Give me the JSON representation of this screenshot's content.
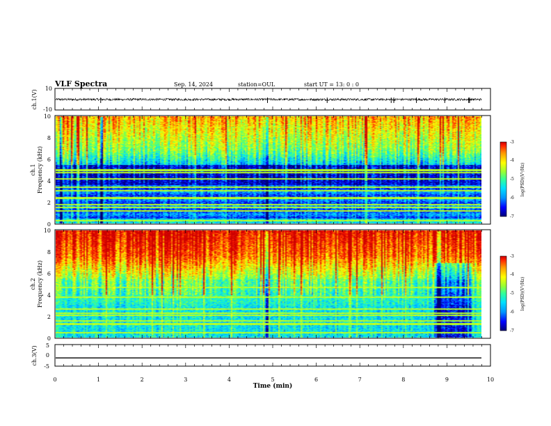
{
  "header": {
    "title": "VLF Spectra",
    "date": "Sep. 14, 2024",
    "station": "station=OUL",
    "start": "start  UT =  13: 0  : 0"
  },
  "colors": {
    "frame": "#000000",
    "colormap": [
      "#00007a",
      "#0000ff",
      "#0096ff",
      "#00e0ff",
      "#33ff99",
      "#99ff33",
      "#ffff00",
      "#ff9900",
      "#ff2200",
      "#cc0000"
    ]
  },
  "chart_data": [
    {
      "type": "line",
      "name": "ch1-waveform",
      "ylabel": "ch.1(V)",
      "ylim": [
        -10,
        10
      ],
      "yticks": [
        "10",
        "-10"
      ],
      "baseline": 0,
      "noise_band": [
        -1.3,
        0.8
      ],
      "spikes_min": [
        1.05,
        4.88,
        6.25,
        7.72,
        7.78,
        8.3,
        8.95,
        9.5,
        9.52
      ]
    },
    {
      "type": "heatmap",
      "name": "ch1-spectrogram",
      "ylabel": "ch.1\nFrequency (kHz)",
      "ylim": [
        0,
        10
      ],
      "yticks": [
        "0",
        "2",
        "4",
        "6",
        "8",
        "10"
      ],
      "xlim": [
        0,
        9.85
      ],
      "colorbar": {
        "label": "log(PSD)(V²/Hz)",
        "range": [
          -7,
          -3
        ],
        "ticks": [
          "-3",
          "-4",
          "-5",
          "-6",
          "-7"
        ]
      },
      "lines_khz": [
        0.3,
        1.2,
        1.5,
        1.8,
        2.4,
        3.1,
        3.4,
        4.2,
        4.8,
        5.0
      ]
    },
    {
      "type": "heatmap",
      "name": "ch2-spectrogram",
      "ylabel": "ch.2\nFrequency (kHz)",
      "ylim": [
        0,
        10
      ],
      "yticks": [
        "0",
        "2",
        "4",
        "6",
        "8",
        "10"
      ],
      "xlim": [
        0,
        9.85
      ],
      "colorbar": {
        "label": "log(PSD)(V²/Hz)",
        "range": [
          -7,
          -3
        ],
        "ticks": [
          "-3",
          "-4",
          "-5",
          "-6",
          "-7"
        ]
      },
      "lines_khz": [
        0.5,
        1.3,
        1.6,
        2.1,
        2.3,
        2.7,
        3.8,
        4.7
      ]
    },
    {
      "type": "line",
      "name": "ch3-waveform",
      "ylabel": "ch.3(V)",
      "ylim": [
        -5,
        5
      ],
      "yticks": [
        "5",
        "0",
        "-5"
      ],
      "constant_value": -1.2,
      "xlim": [
        0,
        9.85
      ]
    }
  ],
  "xaxis": {
    "label": "Time (min)",
    "range": [
      0,
      10
    ],
    "ticks": [
      "0",
      "1",
      "2",
      "3",
      "4",
      "5",
      "6",
      "7",
      "8",
      "9",
      "10"
    ]
  }
}
